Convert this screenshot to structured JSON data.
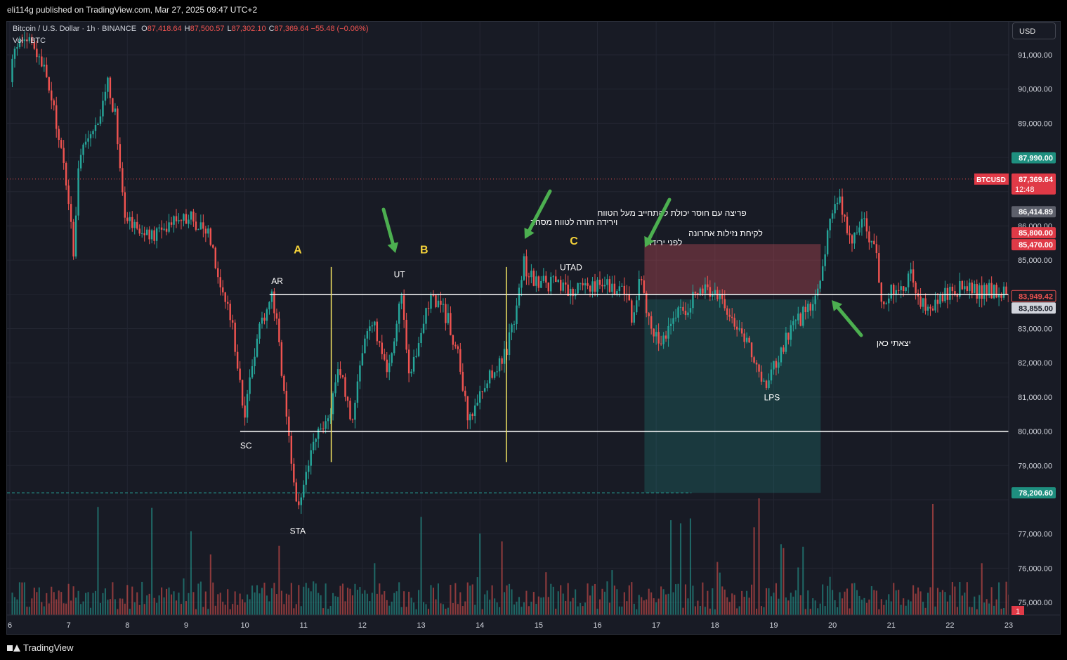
{
  "header": {
    "published": "eli114g published on TradingView.com, Mar 27, 2025 09:47 UTC+2"
  },
  "footer": {
    "brand": "TradingView"
  },
  "legend": {
    "symbol": "Bitcoin / U.S. Dollar · 1h · BINANCE",
    "ohlc": [
      {
        "label": "O",
        "value": "87,418.64"
      },
      {
        "label": "H",
        "value": "87,500.57"
      },
      {
        "label": "L",
        "value": "87,302.10"
      },
      {
        "label": "C",
        "value": "87,369.64"
      }
    ],
    "change": "−55.48 (−0.06%)",
    "volume_label": "Vol · BTC"
  },
  "currency": "USD",
  "colors": {
    "background": "#181b25",
    "up": "#26a69a",
    "down": "#ef5350",
    "level_line": "#ffffff",
    "phase_line": "#f5e663",
    "phase_label": "#f5d33a",
    "arrow": "#4caf50",
    "zone_stop": "#d5525e",
    "zone_target": "#26a69a"
  },
  "chart_data": {
    "type": "candlestick",
    "symbol": "BTCUSD",
    "timeframe": "1h",
    "x_ticks": [
      "6",
      "7",
      "8",
      "9",
      "10",
      "11",
      "12",
      "13",
      "14",
      "15",
      "16",
      "17",
      "18",
      "19",
      "20",
      "21",
      "22",
      "23"
    ],
    "y_ticks": [
      "91,000.00",
      "90,000.00",
      "89,000.00",
      "86,000.00",
      "85,000.00",
      "83,000.00",
      "82,000.00",
      "81,000.00",
      "80,000.00",
      "79,000.00",
      "77,000.00",
      "76,000.00",
      "75,000.00"
    ],
    "ylim": [
      74700,
      92000
    ],
    "price_path": [
      [
        6.0,
        90200
      ],
      [
        6.1,
        91300
      ],
      [
        6.3,
        91500
      ],
      [
        6.6,
        90500
      ],
      [
        6.85,
        88500
      ],
      [
        7.0,
        86800
      ],
      [
        7.08,
        85200
      ],
      [
        7.2,
        88300
      ],
      [
        7.5,
        88800
      ],
      [
        7.65,
        90300
      ],
      [
        7.8,
        89200
      ],
      [
        7.95,
        86500
      ],
      [
        8.1,
        86100
      ],
      [
        8.4,
        85600
      ],
      [
        8.8,
        86300
      ],
      [
        9.1,
        86200
      ],
      [
        9.4,
        85800
      ],
      [
        9.6,
        84200
      ],
      [
        9.8,
        83000
      ],
      [
        10.0,
        80400
      ],
      [
        10.2,
        82800
      ],
      [
        10.45,
        84000
      ],
      [
        10.55,
        83300
      ],
      [
        10.7,
        80300
      ],
      [
        10.9,
        77700
      ],
      [
        11.05,
        78800
      ],
      [
        11.2,
        79800
      ],
      [
        11.4,
        80200
      ],
      [
        11.6,
        82000
      ],
      [
        11.8,
        80200
      ],
      [
        12.0,
        82400
      ],
      [
        12.2,
        83100
      ],
      [
        12.45,
        81700
      ],
      [
        12.65,
        84100
      ],
      [
        12.8,
        81300
      ],
      [
        13.05,
        83400
      ],
      [
        13.2,
        84000
      ],
      [
        13.45,
        83300
      ],
      [
        13.65,
        82000
      ],
      [
        13.8,
        80200
      ],
      [
        14.1,
        81500
      ],
      [
        14.45,
        82300
      ],
      [
        14.6,
        83500
      ],
      [
        14.75,
        84900
      ],
      [
        14.9,
        84400
      ],
      [
        15.3,
        84300
      ],
      [
        15.5,
        84000
      ],
      [
        15.8,
        84300
      ],
      [
        16.2,
        84300
      ],
      [
        16.5,
        84000
      ],
      [
        16.6,
        83200
      ],
      [
        16.75,
        84600
      ],
      [
        16.85,
        83500
      ],
      [
        17.05,
        82600
      ],
      [
        17.3,
        83300
      ],
      [
        17.6,
        83800
      ],
      [
        17.85,
        84200
      ],
      [
        18.1,
        83900
      ],
      [
        18.35,
        83200
      ],
      [
        18.6,
        82400
      ],
      [
        18.8,
        81200
      ],
      [
        19.05,
        82000
      ],
      [
        19.3,
        83000
      ],
      [
        19.55,
        83500
      ],
      [
        19.75,
        84000
      ],
      [
        19.9,
        85700
      ],
      [
        20.1,
        86900
      ],
      [
        20.3,
        85600
      ],
      [
        20.55,
        86100
      ],
      [
        20.75,
        85000
      ],
      [
        20.85,
        83800
      ],
      [
        21.1,
        84200
      ],
      [
        21.35,
        84500
      ],
      [
        21.55,
        83600
      ],
      [
        21.8,
        83800
      ],
      [
        22.05,
        84200
      ],
      [
        22.4,
        84100
      ],
      [
        22.75,
        84100
      ],
      [
        23.0,
        83950
      ]
    ],
    "last_price": "87,369.64",
    "last_price_symbol": "BTCUSD",
    "countdown": "12:48",
    "price_labels": [
      {
        "value": "87,990.00",
        "kind": "green"
      },
      {
        "value": "86,414.89",
        "kind": "gray"
      },
      {
        "value": "85,800.00",
        "kind": "red"
      },
      {
        "value": "85,470.00",
        "kind": "red"
      },
      {
        "value": "83,949.42",
        "kind": "outline-red"
      },
      {
        "value": "83,855.00",
        "kind": "light"
      },
      {
        "value": "78,200.60",
        "kind": "green"
      }
    ],
    "levels": [
      {
        "name": "range-high",
        "price": 84000
      },
      {
        "name": "range-low",
        "price": 80000
      },
      {
        "name": "target",
        "price": 78200.6
      }
    ],
    "phase_labels": [
      "A",
      "B",
      "C"
    ],
    "event_labels": [
      "AR",
      "SC",
      "STA",
      "UT",
      "UTAD",
      "LPS"
    ],
    "annotations": [
      {
        "line1": "פריצה עם חוסר יכולת להתחייב מעל הטווח",
        "line2": "וירידה חזרה לטווח מסחר"
      },
      {
        "line1": "לקיחת נזילות אחרונה",
        "line2": "לפני ירידה"
      },
      {
        "line1": "יצאתי כאן",
        "line2": ""
      }
    ],
    "position": {
      "side": "short",
      "entry": 84000,
      "stop": 85470,
      "target": 78200.6
    },
    "volume_marker": "1"
  }
}
